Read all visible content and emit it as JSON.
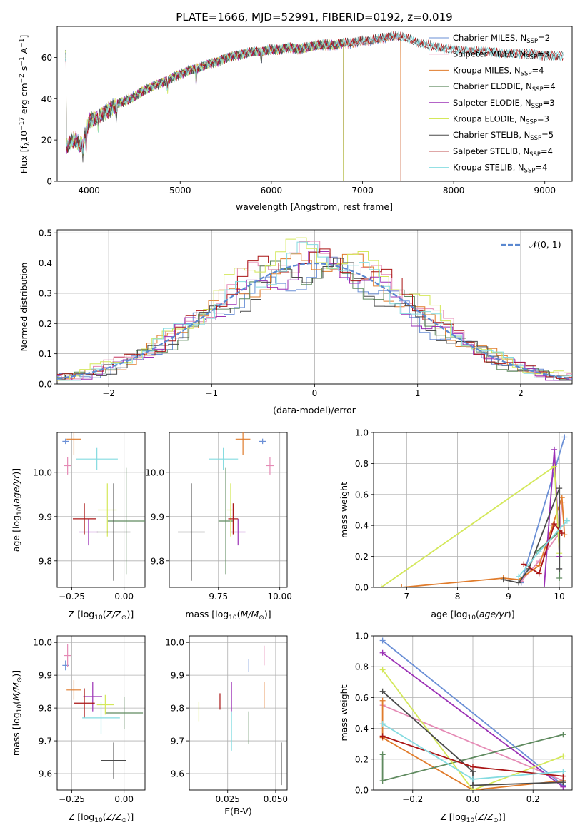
{
  "figure": {
    "title": "PLATE=1666, MJD=52991, FIBERID=0192, z=0.019",
    "colors": {
      "Chabrier MILES": "#6a8fd6",
      "Salpeter MILES": "#e58ab5",
      "Kroupa MILES": "#e07b2b",
      "Chabrier ELODIE": "#5f8a5f",
      "Salpeter ELODIE": "#9b30b5",
      "Kroupa ELODIE": "#d4e85a",
      "Chabrier STELIB": "#4a4a4a",
      "Salpeter STELIB": "#aa1515",
      "Kroupa STELIB": "#84dbe0",
      "gauss": "#5a88d0"
    }
  },
  "chart_data": [
    {
      "id": "spectrum",
      "type": "line",
      "xlabel": "wavelength [Angstrom, rest frame]",
      "ylabel": "Flux [f_λ10^-17 erg cm^-2 s^-1 A^-1]",
      "xlim": [
        3650,
        9300
      ],
      "ylim": [
        0,
        75
      ],
      "xticks": [
        4000,
        5000,
        6000,
        7000,
        8000,
        9000
      ],
      "yticks": [
        0,
        20,
        40,
        60
      ],
      "legend_position": "upper-right",
      "grid": false,
      "envelope": {
        "x": [
          3750,
          3800,
          3850,
          3900,
          3950,
          4000,
          4100,
          4200,
          4300,
          4400,
          4500,
          4600,
          4700,
          4800,
          4900,
          5000,
          5100,
          5200,
          5300,
          5400,
          5500,
          5600,
          5700,
          5800,
          5900,
          6000,
          6100,
          6200,
          6300,
          6400,
          6500,
          6600,
          6700,
          6800,
          6900,
          7000,
          7100,
          7200,
          7300,
          7400,
          7500,
          7600,
          7700,
          7800,
          7900,
          8000,
          8100,
          8200,
          8300,
          8400,
          8500,
          8600,
          8700,
          8800,
          8900,
          9000,
          9100,
          9200
        ],
        "y": [
          16,
          19,
          20,
          17,
          21,
          29,
          31,
          34,
          37,
          39,
          41,
          44,
          46,
          48,
          50,
          52,
          54,
          55,
          57,
          58,
          60,
          61,
          62,
          63,
          63,
          64,
          64,
          65,
          64,
          65,
          66,
          66,
          66,
          67,
          67,
          68,
          68,
          69,
          70,
          70,
          69,
          67,
          66,
          65,
          64,
          64,
          63,
          63,
          63,
          63,
          62,
          62,
          62,
          62,
          62,
          61,
          61,
          61
        ]
      },
      "series": [
        {
          "name": "Chabrier MILES, N_SSP=2",
          "legend_main": "Chabrier MILES, N",
          "legend_sub": "SSP",
          "legend_val": "=2",
          "xmax": 7420
        },
        {
          "name": "Salpeter MILES, N_SSP=3",
          "legend_main": "Salpeter MILES, N",
          "legend_sub": "SSP",
          "legend_val": "=3",
          "xmax": 7420
        },
        {
          "name": "Kroupa MILES, N_SSP=4",
          "legend_main": "Kroupa MILES, N",
          "legend_sub": "SSP",
          "legend_val": "=4",
          "xmax": 7420
        },
        {
          "name": "Chabrier ELODIE, N_SSP=4",
          "legend_main": "Chabrier ELODIE, N",
          "legend_sub": "SSP",
          "legend_val": "=4",
          "xmax": 6790
        },
        {
          "name": "Salpeter ELODIE, N_SSP=3",
          "legend_main": "Salpeter ELODIE, N",
          "legend_sub": "SSP",
          "legend_val": "=3",
          "xmax": 6790
        },
        {
          "name": "Kroupa ELODIE, N_SSP=3",
          "legend_main": "Kroupa ELODIE, N",
          "legend_sub": "SSP",
          "legend_val": "=3",
          "xmax": 6790
        },
        {
          "name": "Chabrier STELIB, N_SSP=5",
          "legend_main": "Chabrier STELIB, N",
          "legend_sub": "SSP",
          "legend_val": "=5",
          "xmax": 9200
        },
        {
          "name": "Salpeter STELIB, N_SSP=4",
          "legend_main": "Salpeter STELIB, N",
          "legend_sub": "SSP",
          "legend_val": "=4",
          "xmax": 9200
        },
        {
          "name": "Kroupa STELIB, N_SSP=4",
          "legend_main": "Kroupa STELIB, N",
          "legend_sub": "SSP",
          "legend_val": "=4",
          "xmax": 9200
        }
      ]
    },
    {
      "id": "residuals",
      "type": "histogram",
      "xlabel": "(data-model)/error",
      "ylabel": "Normed distribution",
      "xlim": [
        -2.5,
        2.5
      ],
      "ylim": [
        0,
        0.51
      ],
      "xticks": [
        -2,
        -1,
        0,
        1,
        2
      ],
      "yticks": [
        0.0,
        0.1,
        0.2,
        0.3,
        0.4,
        0.5
      ],
      "grid": true,
      "legend_position": "upper-right",
      "gauss_label": "𝒩(0, 1)",
      "bin_width": 0.1,
      "offsets": [
        -0.08,
        0.05,
        -0.03,
        0.07,
        -0.06,
        0.02,
        0.08,
        -0.05,
        0.03
      ],
      "peaks": [
        0.4,
        0.47,
        0.44,
        0.41,
        0.42,
        0.49,
        0.4,
        0.46,
        0.45
      ]
    },
    {
      "id": "Z-age",
      "type": "errorbar",
      "xlabel": "Z [log10(Z/Z⊙)]",
      "ylabel": "age [log10(age/yr)]",
      "xlim": [
        -0.32,
        0.1
      ],
      "ylim": [
        9.74,
        10.09
      ],
      "xticks": [
        -0.25,
        0.0
      ],
      "xticklabels": [
        "−0.25",
        "0.00"
      ],
      "yticks": [
        9.8,
        9.9,
        10.0
      ],
      "grid": true,
      "points": [
        {
          "x": -0.28,
          "xerr": 0.015,
          "y": 10.07,
          "yerr": 0.006
        },
        {
          "x": -0.27,
          "xerr": 0.018,
          "y": 10.015,
          "yerr": 0.02
        },
        {
          "x": -0.24,
          "xerr": 0.035,
          "y": 10.075,
          "yerr": 0.035
        },
        {
          "x": 0.01,
          "xerr": 0.09,
          "y": 9.89,
          "yerr": 0.12
        },
        {
          "x": -0.17,
          "xerr": 0.045,
          "y": 9.865,
          "yerr": 0.03
        },
        {
          "x": -0.08,
          "xerr": 0.045,
          "y": 9.915,
          "yerr": 0.06
        },
        {
          "x": -0.05,
          "xerr": 0.08,
          "y": 9.865,
          "yerr": 0.11
        },
        {
          "x": -0.19,
          "xerr": 0.055,
          "y": 9.895,
          "yerr": 0.035
        },
        {
          "x": -0.13,
          "xerr": 0.1,
          "y": 10.03,
          "yerr": 0.025
        }
      ]
    },
    {
      "id": "mass-age",
      "type": "errorbar",
      "xlabel": "mass [log10(M/M⊙)]",
      "ylabel": "",
      "xlim": [
        9.55,
        10.03
      ],
      "ylim": [
        9.74,
        10.09
      ],
      "xticks": [
        9.75,
        10.0
      ],
      "xticklabels": [
        "9.75",
        "10.00"
      ],
      "yticks": [
        9.8,
        9.9,
        10.0
      ],
      "grid": true,
      "points": [
        {
          "x": 9.93,
          "xerr": 0.015,
          "y": 10.07,
          "yerr": 0.006
        },
        {
          "x": 9.96,
          "xerr": 0.015,
          "y": 10.015,
          "yerr": 0.02
        },
        {
          "x": 9.85,
          "xerr": 0.03,
          "y": 10.075,
          "yerr": 0.035
        },
        {
          "x": 9.78,
          "xerr": 0.03,
          "y": 9.89,
          "yerr": 0.12
        },
        {
          "x": 9.83,
          "xerr": 0.03,
          "y": 9.865,
          "yerr": 0.03
        },
        {
          "x": 9.8,
          "xerr": 0.015,
          "y": 9.915,
          "yerr": 0.06
        },
        {
          "x": 9.64,
          "xerr": 0.055,
          "y": 9.865,
          "yerr": 0.11
        },
        {
          "x": 9.81,
          "xerr": 0.02,
          "y": 9.895,
          "yerr": 0.035
        },
        {
          "x": 9.77,
          "xerr": 0.06,
          "y": 10.03,
          "yerr": 0.025
        }
      ]
    },
    {
      "id": "age-weight",
      "type": "line",
      "xlabel": "age [log10(age/yr)]",
      "ylabel": "mass weight",
      "xlim": [
        6.35,
        10.25
      ],
      "ylim": [
        0,
        1.0
      ],
      "xticks": [
        7,
        8,
        9,
        10
      ],
      "yticks": [
        0.0,
        0.2,
        0.4,
        0.6,
        0.8,
        1.0
      ],
      "grid": true,
      "series": [
        {
          "x": [
            9.25,
            10.1
          ],
          "y": [
            0.03,
            0.97
          ]
        },
        {
          "x": [
            9.25,
            9.6,
            10.0,
            10.05
          ],
          "y": [
            0.04,
            0.17,
            0.35,
            0.55
          ]
        },
        {
          "x": [
            6.9,
            8.9,
            9.2,
            9.6,
            10.05,
            10.1
          ],
          "y": [
            0.0,
            0.06,
            0.05,
            0.14,
            0.58,
            0.34
          ]
        },
        {
          "x": [
            9.55,
            10.0,
            10.0
          ],
          "y": [
            0.23,
            0.36,
            0.06
          ]
        },
        {
          "x": [
            9.7,
            9.9,
            10.0
          ],
          "y": [
            0.0,
            0.89,
            0.2
          ]
        },
        {
          "x": [
            6.5,
            9.9,
            10.0
          ],
          "y": [
            0.0,
            0.78,
            0.22
          ]
        },
        {
          "x": [
            8.9,
            9.2,
            9.4,
            10.0,
            10.0
          ],
          "y": [
            0.05,
            0.03,
            0.12,
            0.64,
            0.12
          ]
        },
        {
          "x": [
            9.3,
            9.6,
            9.9,
            10.05
          ],
          "y": [
            0.15,
            0.09,
            0.41,
            0.35
          ]
        },
        {
          "x": [
            9.2,
            9.6,
            10.15
          ],
          "y": [
            0.07,
            0.23,
            0.43
          ]
        }
      ]
    },
    {
      "id": "Z-mass",
      "type": "errorbar",
      "xlabel": "Z [log10(Z/Z⊙)]",
      "ylabel": "mass [log10(M/M⊙)]",
      "xlim": [
        -0.32,
        0.1
      ],
      "ylim": [
        9.55,
        10.02
      ],
      "xticks": [
        -0.25,
        0.0
      ],
      "xticklabels": [
        "−0.25",
        "0.00"
      ],
      "yticks": [
        9.6,
        9.7,
        9.8,
        9.9,
        10.0
      ],
      "grid": true,
      "points": [
        {
          "x": -0.28,
          "xerr": 0.015,
          "y": 9.93,
          "yerr": 0.015
        },
        {
          "x": -0.27,
          "xerr": 0.018,
          "y": 9.96,
          "yerr": 0.035
        },
        {
          "x": -0.24,
          "xerr": 0.035,
          "y": 9.855,
          "yerr": 0.03
        },
        {
          "x": 0.0,
          "xerr": 0.09,
          "y": 9.785,
          "yerr": 0.05
        },
        {
          "x": -0.15,
          "xerr": 0.045,
          "y": 9.835,
          "yerr": 0.045
        },
        {
          "x": -0.09,
          "xerr": 0.04,
          "y": 9.81,
          "yerr": 0.03
        },
        {
          "x": -0.05,
          "xerr": 0.06,
          "y": 9.64,
          "yerr": 0.055
        },
        {
          "x": -0.19,
          "xerr": 0.05,
          "y": 9.815,
          "yerr": 0.045
        },
        {
          "x": -0.11,
          "xerr": 0.09,
          "y": 9.77,
          "yerr": 0.05
        }
      ]
    },
    {
      "id": "EBV-mass",
      "type": "errorbar",
      "xlabel": "E(B-V)",
      "ylabel": "",
      "xlim": [
        0.005,
        0.056
      ],
      "ylim": [
        9.55,
        10.02
      ],
      "xticks": [
        0.025,
        0.05
      ],
      "xticklabels": [
        "0.025",
        "0.050"
      ],
      "yticks": [
        9.6,
        9.7,
        9.8,
        9.9,
        10.0
      ],
      "grid": true,
      "points": [
        {
          "x": 0.036,
          "xerr": 0.0,
          "y": 9.93,
          "yerr": 0.02
        },
        {
          "x": 0.044,
          "xerr": 0.0,
          "y": 9.96,
          "yerr": 0.03
        },
        {
          "x": 0.044,
          "xerr": 0.0,
          "y": 9.84,
          "yerr": 0.04
        },
        {
          "x": 0.036,
          "xerr": 0.0,
          "y": 9.74,
          "yerr": 0.05
        },
        {
          "x": 0.027,
          "xerr": 0.0,
          "y": 9.835,
          "yerr": 0.045
        },
        {
          "x": 0.01,
          "xerr": 0.0,
          "y": 9.79,
          "yerr": 0.03
        },
        {
          "x": 0.053,
          "xerr": 0.0,
          "y": 9.63,
          "yerr": 0.065
        },
        {
          "x": 0.021,
          "xerr": 0.0,
          "y": 9.82,
          "yerr": 0.025
        },
        {
          "x": 0.027,
          "xerr": 0.0,
          "y": 9.73,
          "yerr": 0.06
        }
      ]
    },
    {
      "id": "Z-weight",
      "type": "line",
      "xlabel": "Z [log10(Z/Z⊙)]",
      "ylabel": "mass weight",
      "xlim": [
        -0.33,
        0.33
      ],
      "ylim": [
        0,
        1.0
      ],
      "xticks": [
        -0.2,
        0.0,
        0.2
      ],
      "xticklabels": [
        "−0.2",
        "0.0",
        "0.2"
      ],
      "yticks": [
        0.0,
        0.2,
        0.4,
        0.6,
        0.8,
        1.0
      ],
      "grid": true,
      "series": [
        {
          "x": [
            -0.3,
            0.3
          ],
          "y": [
            0.97,
            0.03
          ]
        },
        {
          "x": [
            -0.3,
            0.3
          ],
          "y": [
            0.55,
            0.06
          ]
        },
        {
          "x": [
            -0.3,
            -0.3,
            0.0,
            0.3
          ],
          "y": [
            0.58,
            0.34,
            0.0,
            0.06
          ]
        },
        {
          "x": [
            -0.3,
            -0.3,
            0.3
          ],
          "y": [
            0.23,
            0.06,
            0.36
          ]
        },
        {
          "x": [
            -0.3,
            0.3
          ],
          "y": [
            0.89,
            0.02
          ]
        },
        {
          "x": [
            -0.3,
            0.0,
            0.3
          ],
          "y": [
            0.78,
            0.0,
            0.22
          ]
        },
        {
          "x": [
            -0.3,
            0.0,
            0.0,
            0.3
          ],
          "y": [
            0.64,
            0.12,
            0.03,
            0.05
          ]
        },
        {
          "x": [
            -0.3,
            0.0,
            0.3
          ],
          "y": [
            0.35,
            0.15,
            0.09
          ]
        },
        {
          "x": [
            -0.3,
            0.0,
            0.3
          ],
          "y": [
            0.43,
            0.07,
            0.12
          ]
        }
      ]
    }
  ]
}
